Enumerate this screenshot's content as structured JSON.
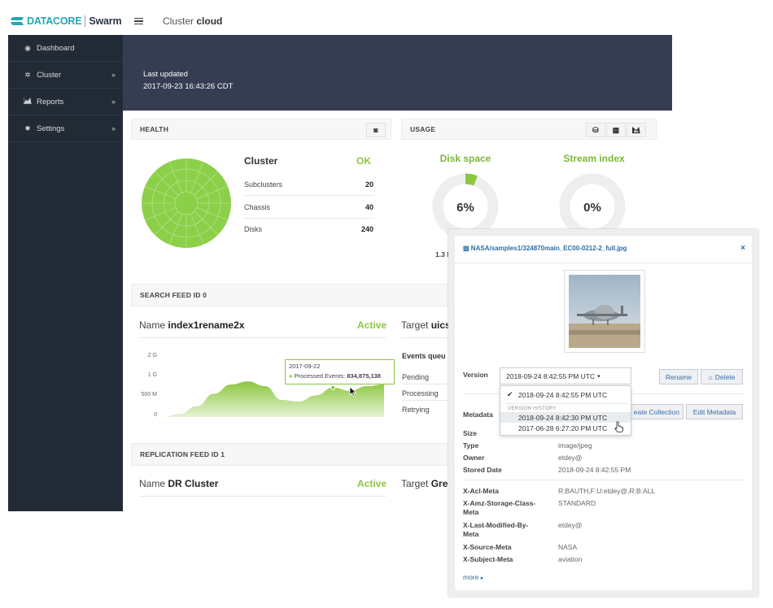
{
  "brand": {
    "name": "DATACORE",
    "product": "Swarm",
    "color": "#21a9b5"
  },
  "sidebar": {
    "items": [
      {
        "label": "Dashboard",
        "icon": "dashboard-icon",
        "chevron": ""
      },
      {
        "label": "Cluster",
        "icon": "gear-icon",
        "chevron": "»"
      },
      {
        "label": "Reports",
        "icon": "area-chart-icon",
        "chevron": "»"
      },
      {
        "label": "Settings",
        "icon": "cog-icon",
        "chevron": "»"
      }
    ]
  },
  "header": {
    "title_prefix": "Cluster",
    "title_name": "cloud"
  },
  "banner": {
    "label": "Last updated",
    "timestamp": "2017-09-23  16:43:26 CDT"
  },
  "health": {
    "title": "HEALTH",
    "cluster_label": "Cluster",
    "cluster_status": "OK",
    "rows": [
      {
        "label": "Subclusters",
        "value": "20"
      },
      {
        "label": "Chassis",
        "value": "40"
      },
      {
        "label": "Disks",
        "value": "240"
      }
    ]
  },
  "usage": {
    "title": "USAGE",
    "disk": {
      "title": "Disk space",
      "value": "6%",
      "fraction": 0.06,
      "subtext": "1.3 I"
    },
    "stream": {
      "title": "Stream index",
      "value": "0%",
      "fraction": 0.0
    }
  },
  "search_feed": {
    "title": "SEARCH FEED ID 0",
    "name_label": "Name",
    "name": "index1rename2x",
    "status": "Active",
    "target_label": "Target",
    "target": "uics",
    "queue_title": "Events queu",
    "queue_rows": [
      "Pending",
      "Processing",
      "Retrying"
    ],
    "tooltip_date": "2017-09-22",
    "tooltip_label": "Processed Events:",
    "tooltip_value": "834,875,138"
  },
  "chart_data": {
    "type": "area",
    "yticks": [
      "2 G",
      "1 G",
      "500 M",
      "0"
    ],
    "series": [
      {
        "values": [
          0.0,
          0.1,
          0.35,
          0.75,
          1.05,
          1.15,
          1.0,
          0.55,
          0.5,
          0.7,
          0.95,
          0.85,
          1.0,
          1.05
        ]
      }
    ],
    "ylim": [
      0,
      2
    ],
    "color": "#8cc63f"
  },
  "replication_feed": {
    "title": "REPLICATION FEED ID 1",
    "name_label": "Name",
    "name": "DR Cluster",
    "status": "Active",
    "target_label": "Target",
    "target": "Gree"
  },
  "object_panel": {
    "path": "NASA/samples1/324870main_EC00-0212-2_full.jpg",
    "close": "×",
    "version_label": "Version",
    "version_selected": "2018-09-24 8:42:55 PM UTC",
    "rename_label": "Rename",
    "delete_label": "Delete",
    "dropdown": {
      "current": "2018-09-24 8:42:55 PM UTC",
      "history_header": "VERSION HISTORY",
      "history": [
        "2018-09-24 8:42:30 PM UTC",
        "2017-06-28 6:27:20 PM UTC"
      ]
    },
    "metadata_label": "Metadata",
    "create_collection_label": "Create Collection",
    "create_collection_visible": "eate Collection",
    "edit_metadata_label": "Edit Metadata",
    "fields": [
      {
        "label": "Size",
        "value": ""
      },
      {
        "label": "Type",
        "value": "image/jpeg"
      },
      {
        "label": "Owner",
        "value": "etdey@"
      },
      {
        "label": "Stored Date",
        "value": "2018-09-24 8:42:55 PM"
      }
    ],
    "meta_fields": [
      {
        "label": "X-Acl-Meta",
        "value": "R:BAUTH,F:U:etdey@,R:B:ALL"
      },
      {
        "label": "X-Amz-Storage-Class-",
        "label2": "Meta",
        "value": "STANDARD"
      },
      {
        "label": "X-Last-Modified-By-",
        "label2": "Meta",
        "value": "etdey@"
      },
      {
        "label": "X-Source-Meta",
        "value": "NASA"
      },
      {
        "label": "X-Subject-Meta",
        "value": "aviation"
      }
    ],
    "more_label": "more"
  }
}
